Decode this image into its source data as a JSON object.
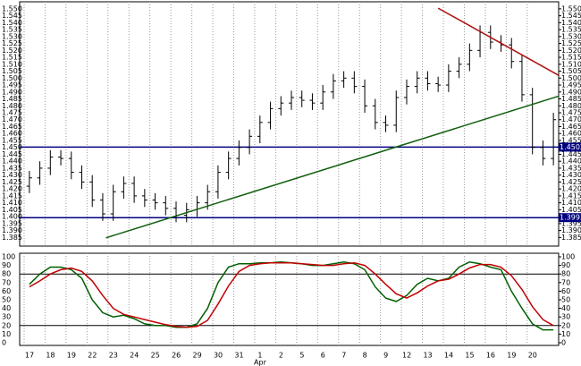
{
  "chart_data": [
    {
      "type": "ohlc",
      "categories": [
        "17",
        null,
        "18",
        null,
        "19",
        null,
        "22",
        null,
        "23",
        null,
        "24",
        null,
        "25",
        null,
        "26",
        null,
        "29",
        null,
        "30",
        null,
        "31",
        null,
        "1",
        null,
        "2",
        null,
        "5",
        null,
        "6",
        null,
        "7",
        null,
        "8",
        null,
        "9",
        null,
        "12",
        null,
        "13",
        null,
        "14",
        null,
        "15",
        null,
        "16",
        null,
        "19",
        null,
        "20",
        null,
        null
      ],
      "months": [
        {
          "label": "Apr",
          "category": 22
        }
      ],
      "open": [
        1.422,
        1.428,
        1.435,
        1.443,
        1.442,
        1.432,
        1.425,
        1.412,
        1.402,
        1.418,
        1.424,
        1.415,
        1.412,
        1.41,
        1.406,
        1.401,
        1.405,
        1.41,
        1.418,
        1.432,
        1.442,
        1.45,
        1.458,
        1.468,
        1.478,
        1.482,
        1.486,
        1.484,
        1.482,
        1.49,
        1.498,
        1.5,
        1.494,
        1.48,
        1.468,
        1.466,
        1.486,
        1.494,
        1.5,
        1.496,
        1.495,
        1.505,
        1.51,
        1.52,
        1.533,
        1.526,
        1.524,
        1.512,
        1.488,
        1.45,
        1.442
      ],
      "high": [
        1.433,
        1.44,
        1.448,
        1.448,
        1.447,
        1.437,
        1.43,
        1.417,
        1.423,
        1.429,
        1.429,
        1.42,
        1.417,
        1.415,
        1.411,
        1.41,
        1.415,
        1.423,
        1.437,
        1.447,
        1.455,
        1.463,
        1.473,
        1.483,
        1.487,
        1.491,
        1.491,
        1.489,
        1.495,
        1.503,
        1.505,
        1.505,
        1.499,
        1.485,
        1.473,
        1.491,
        1.499,
        1.505,
        1.505,
        1.501,
        1.51,
        1.515,
        1.525,
        1.538,
        1.538,
        1.531,
        1.529,
        1.517,
        1.493,
        1.455,
        1.475
      ],
      "low": [
        1.417,
        1.423,
        1.43,
        1.437,
        1.427,
        1.42,
        1.407,
        1.397,
        1.397,
        1.413,
        1.41,
        1.407,
        1.405,
        1.401,
        1.396,
        1.396,
        1.4,
        1.405,
        1.413,
        1.427,
        1.437,
        1.445,
        1.453,
        1.463,
        1.473,
        1.477,
        1.479,
        1.477,
        1.477,
        1.485,
        1.493,
        1.489,
        1.475,
        1.463,
        1.461,
        1.461,
        1.481,
        1.489,
        1.491,
        1.49,
        1.49,
        1.5,
        1.505,
        1.515,
        1.521,
        1.519,
        1.507,
        1.483,
        1.445,
        1.437,
        1.437
      ],
      "close": [
        1.428,
        1.435,
        1.443,
        1.442,
        1.432,
        1.425,
        1.412,
        1.402,
        1.418,
        1.424,
        1.415,
        1.412,
        1.41,
        1.406,
        1.401,
        1.405,
        1.41,
        1.418,
        1.432,
        1.442,
        1.45,
        1.458,
        1.468,
        1.478,
        1.482,
        1.486,
        1.484,
        1.482,
        1.49,
        1.498,
        1.5,
        1.494,
        1.48,
        1.468,
        1.466,
        1.486,
        1.494,
        1.5,
        1.496,
        1.495,
        1.505,
        1.51,
        1.52,
        1.533,
        1.526,
        1.524,
        1.512,
        1.488,
        1.45,
        1.442,
        1.47
      ],
      "color": "#000000",
      "ylim": [
        1.382,
        1.5525
      ],
      "yticks": [
        1.385,
        {
          "value": 1.39,
          "label": "1.390"
        },
        1.395,
        {
          "value": 1.4,
          "label": "1.400"
        },
        1.405,
        {
          "value": 1.41,
          "label": "1.410"
        },
        1.415,
        {
          "value": 1.42,
          "label": "1.420"
        },
        1.425,
        {
          "value": 1.43,
          "label": "1.430"
        },
        1.435,
        {
          "value": 1.44,
          "label": "1.440"
        },
        1.445,
        {
          "value": 1.45,
          "label": "1.450"
        },
        1.455,
        {
          "value": 1.46,
          "label": "1.460"
        },
        1.465,
        {
          "value": 1.47,
          "label": "1.470"
        },
        1.475,
        {
          "value": 1.48,
          "label": "1.480"
        },
        1.485,
        {
          "value": 1.49,
          "label": "1.490"
        },
        1.495,
        {
          "value": 1.5,
          "label": "1.500"
        },
        1.505,
        {
          "value": 1.51,
          "label": "1.510"
        },
        1.515,
        {
          "value": 1.52,
          "label": "1.520"
        },
        1.525,
        {
          "value": 1.53,
          "label": "1.530"
        },
        1.535,
        {
          "value": 1.54,
          "label": "1.540"
        },
        1.545,
        {
          "value": 1.55,
          "label": "1.550"
        }
      ],
      "levels": [
        {
          "value": 1.4502,
          "label": "1.4502",
          "color": "#000080"
        },
        {
          "value": 1.3993,
          "label": "1.3993",
          "color": "#000080"
        }
      ],
      "trendlines": [
        {
          "x": [
            39.5,
            51
          ],
          "y": [
            1.5505,
            1.502
          ],
          "color": "#b01010"
        },
        {
          "x": [
            7.8,
            51
          ],
          "y": [
            1.3847,
            1.487
          ],
          "color": "#106010"
        }
      ],
      "grid": true
    },
    {
      "type": "line",
      "series": [
        {
          "name": "%K",
          "color": "#006000",
          "values": [
            68,
            80,
            88,
            88,
            85,
            75,
            50,
            35,
            30,
            32,
            28,
            22,
            20,
            20,
            18,
            18,
            22,
            40,
            70,
            88,
            92,
            92,
            93,
            93,
            94,
            93,
            92,
            90,
            90,
            92,
            94,
            92,
            85,
            65,
            52,
            48,
            55,
            68,
            75,
            72,
            75,
            88,
            94,
            92,
            88,
            85,
            60,
            40,
            22,
            15,
            15
          ]
        },
        {
          "name": "%D",
          "color": "#c00000",
          "values": [
            65,
            72,
            80,
            85,
            87,
            83,
            72,
            55,
            40,
            33,
            30,
            27,
            24,
            21,
            19,
            18,
            19,
            26,
            45,
            66,
            83,
            90,
            92,
            93,
            93,
            93,
            92,
            91,
            90,
            90,
            92,
            93,
            90,
            80,
            68,
            57,
            52,
            58,
            66,
            72,
            74,
            80,
            87,
            91,
            91,
            88,
            78,
            62,
            42,
            27,
            20
          ]
        }
      ],
      "ylim": [
        0,
        100
      ],
      "yticks": [
        0,
        10,
        20,
        30,
        40,
        50,
        60,
        70,
        80,
        90,
        100
      ],
      "levels": [
        80,
        20
      ]
    }
  ]
}
